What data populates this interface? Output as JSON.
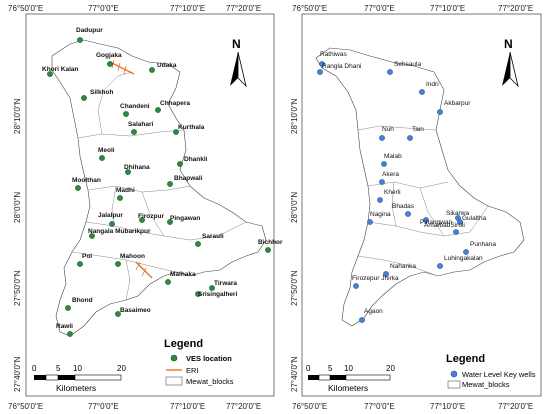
{
  "left_map": {
    "x_ticks": [
      "76°50'0\"E",
      "77°0'0\"E",
      "77°10'0\"E",
      "77°20'0\"E"
    ],
    "y_ticks": [
      "28°10'0\"N",
      "28°0'0\"N",
      "27°50'0\"N",
      "27°40'0\"N"
    ],
    "north_label": "N",
    "legend": {
      "title": "Legend",
      "items": [
        "VES location",
        "ERI",
        "Mewat_blocks"
      ]
    },
    "scale": {
      "numbers": [
        "0",
        "5",
        "10",
        "20"
      ],
      "unit": "Kilometers"
    },
    "sites": [
      "Dadupur",
      "Gogjaka",
      "Udaka",
      "Khori Kalan",
      "Silkhoh",
      "Chandeni",
      "Chhapera",
      "Salahari",
      "Kurthala",
      "Meoli",
      "Dhankli",
      "Dhihana",
      "Moolthan",
      "Madhi",
      "Bhapwali",
      "Jalalpur",
      "Firozpur",
      "Pingawan",
      "Nangala Mubarikpur",
      "Sarauli",
      "Bichhor",
      "Pol",
      "Mahoon",
      "Malhaka",
      "Tirwara",
      "Srisingalheri",
      "Bhond",
      "Basaimeo",
      "Rawli"
    ]
  },
  "right_map": {
    "x_ticks": [
      "76°50'0\"E",
      "77°0'0\"E",
      "77°10'0\"E",
      "77°20'0\"E"
    ],
    "y_ticks": [
      "28°10'0\"N",
      "28°0'0\"N",
      "27°50'0\"N",
      "27°40'0\"N"
    ],
    "north_label": "N",
    "legend": {
      "title": "Legend",
      "items": [
        "Water Level Key wells",
        "Mewat_blocks"
      ]
    },
    "scale": {
      "numbers": [
        "0",
        "5",
        "10",
        "20"
      ],
      "unit": "Kilometers"
    },
    "sites": [
      "Rathiwas",
      "Rangla Dhani",
      "Sehsaula",
      "Indri",
      "Akbarpur",
      "Nuh",
      "Tain",
      "Malab",
      "Akera",
      "Kherli",
      "Sikarwa",
      "AmarbadSiroli",
      "Bhadas",
      "Nagina",
      "Pinangwan",
      "Gulaltha",
      "Punhana",
      "Luhingakalan",
      "Nahanka",
      "Firozepur Jhirka",
      "Agaon"
    ]
  },
  "colors": {
    "ves_marker": "#2e8b3e",
    "well_marker": "#4a7fd6",
    "eri_line": "#e8702a"
  }
}
